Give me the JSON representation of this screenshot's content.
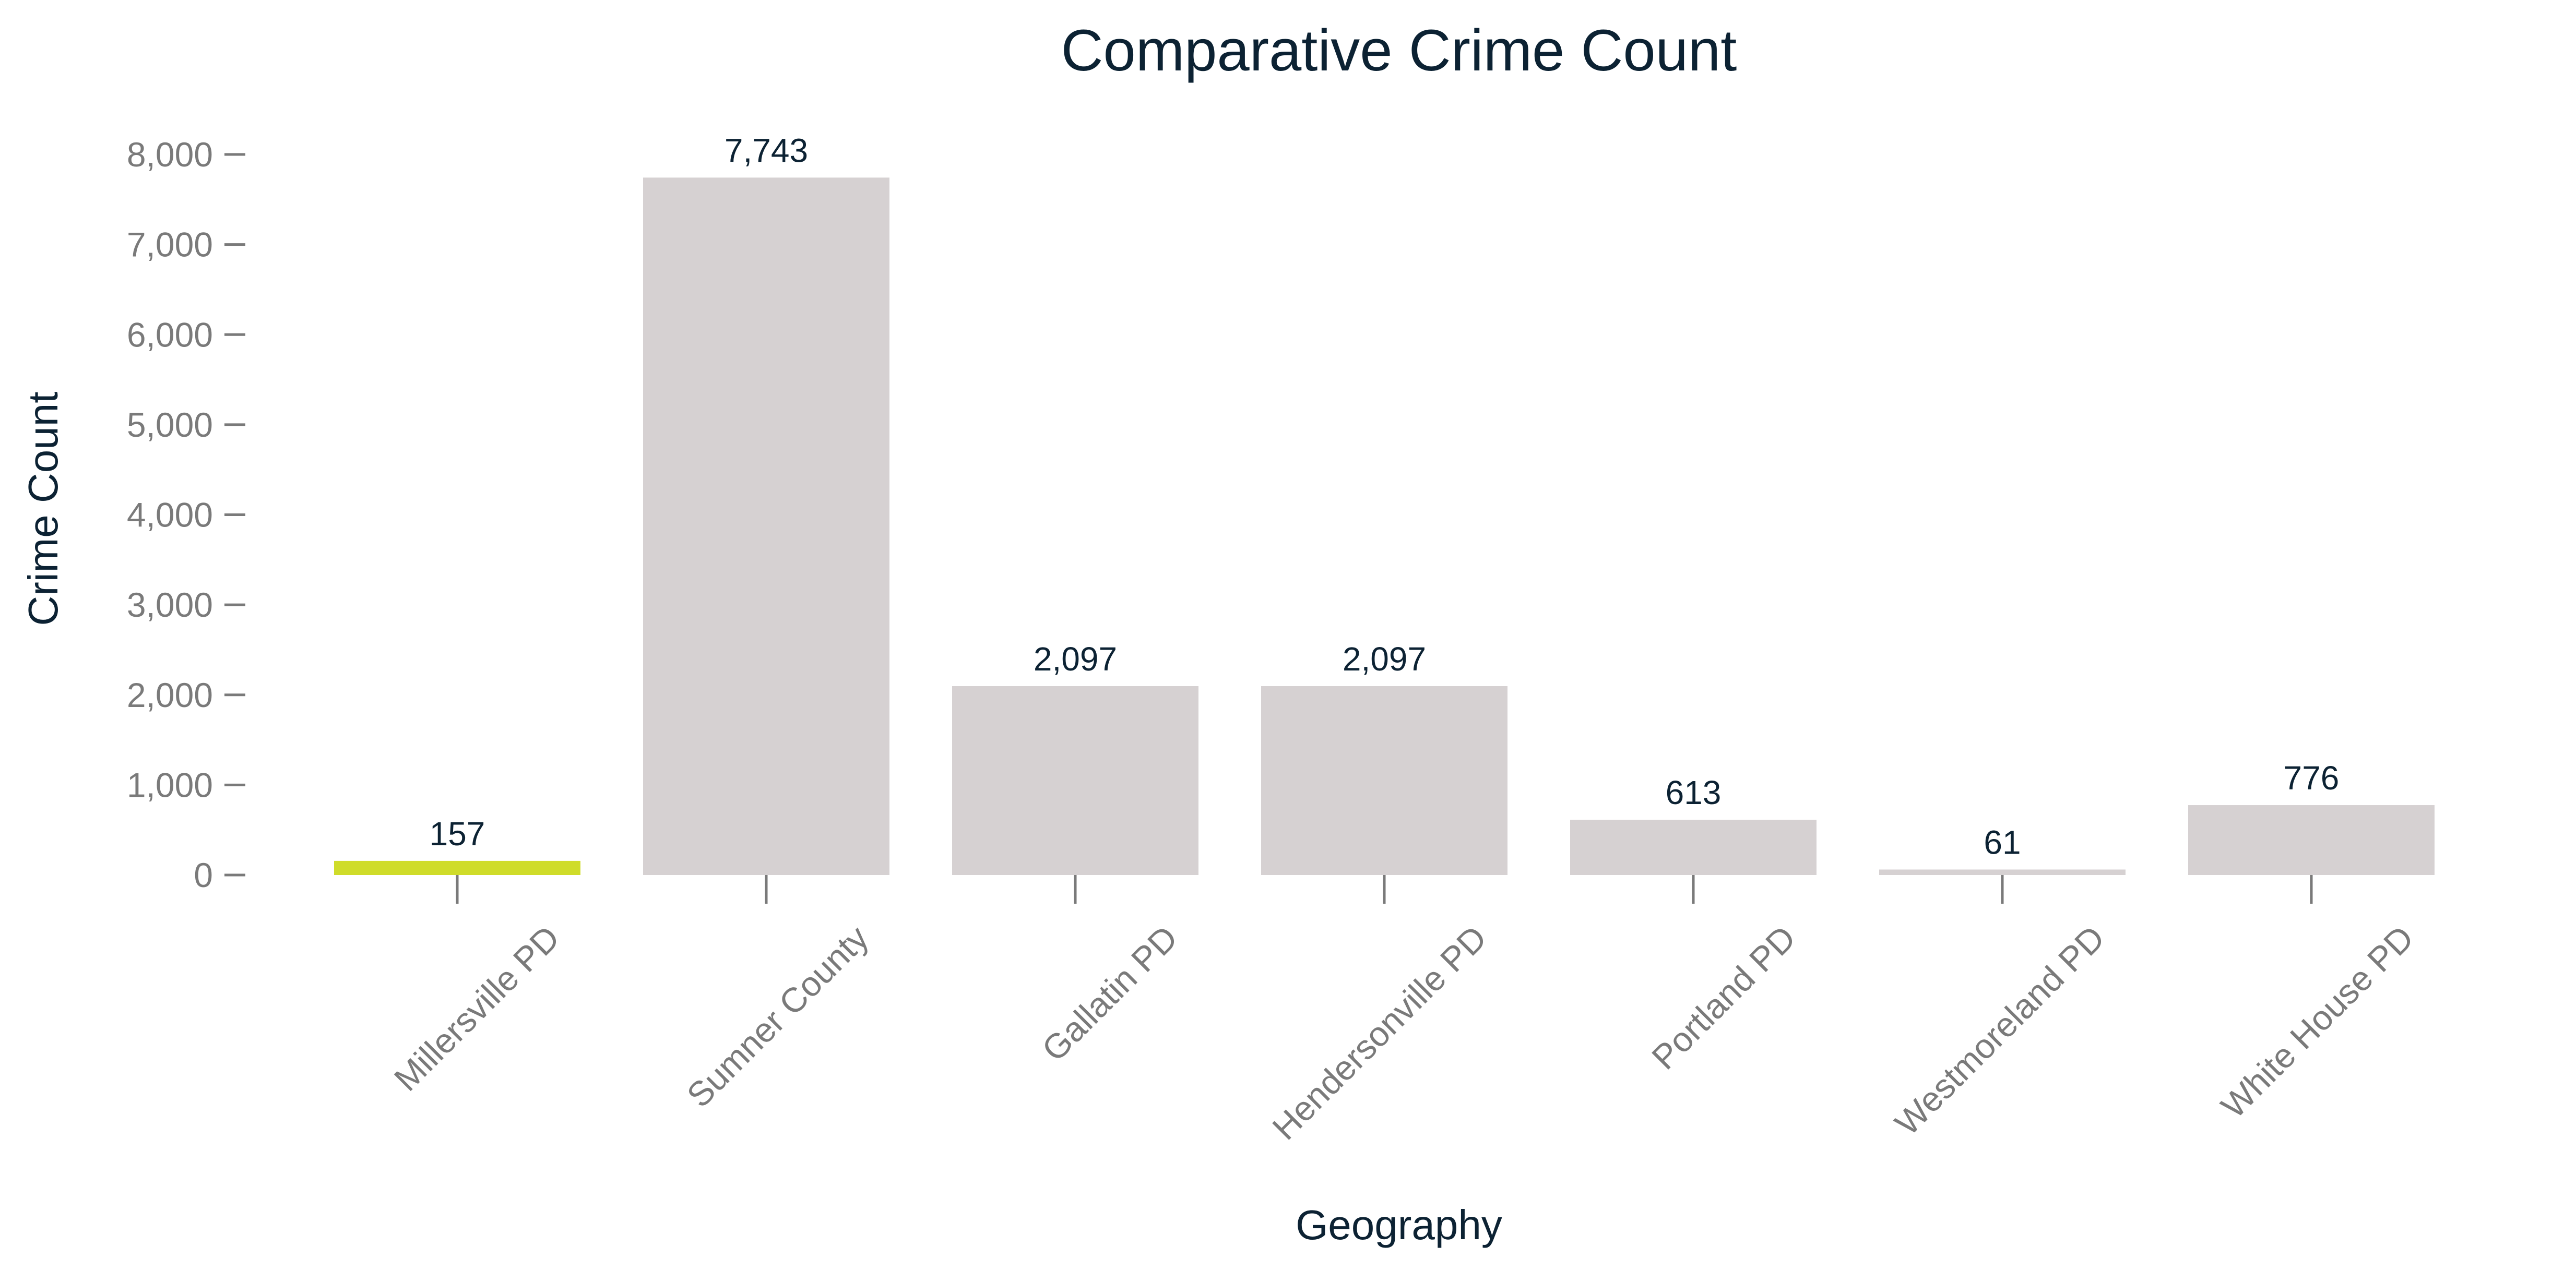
{
  "chart_data": {
    "type": "bar",
    "title": "Comparative Crime Count",
    "xlabel": "Geography",
    "ylabel": "Crime Count",
    "categories": [
      "Millersville PD",
      "Sumner County",
      "Gallatin PD",
      "Hendersonville PD",
      "Portland PD",
      "Westmoreland PD",
      "White House PD"
    ],
    "values": [
      157,
      7743,
      2097,
      2097,
      613,
      61,
      776
    ],
    "data_labels": [
      "157",
      "7,743",
      "2,097",
      "2,097",
      "613",
      "61",
      "776"
    ],
    "ylim": [
      0,
      8000
    ],
    "yticks": [
      0,
      1000,
      2000,
      3000,
      4000,
      5000,
      6000,
      7000,
      8000
    ],
    "ytick_labels": [
      "0",
      "1,000",
      "2,000",
      "3,000",
      "4,000",
      "5,000",
      "6,000",
      "7,000",
      "8,000"
    ],
    "grid": false,
    "legend": "none",
    "highlight_index": 0,
    "colors": {
      "highlight": "#cfdc2a",
      "bar": "#d6d1d2",
      "title": "#0c2233",
      "tick": "#7a7a7a"
    }
  }
}
